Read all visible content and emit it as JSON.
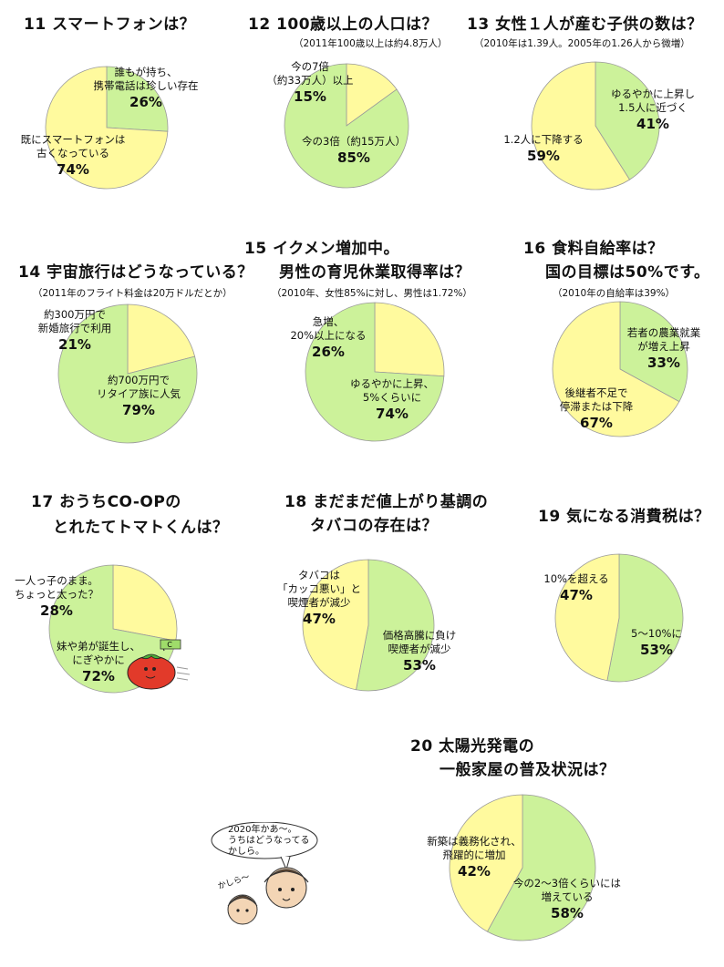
{
  "colors": {
    "green": "#CCF29A",
    "yellow": "#FFFA9E",
    "stroke": "#9a9a9a"
  },
  "chart_data": [
    {
      "type": "pie",
      "title": "11 スマートフォンは？",
      "subtitle": "",
      "slices": [
        {
          "label": "誰もが持ち、携帯電話は珍しい存在",
          "label_lines": [
            "誰もが持ち、",
            "携帯電話は珍しい存在"
          ],
          "value": 26,
          "value_label": "26%",
          "color": "#CCF29A"
        },
        {
          "label": "既にスマートフォンは古くなっている",
          "label_lines": [
            "既にスマートフォンは",
            "古くなっている"
          ],
          "value": 74,
          "value_label": "74%",
          "color": "#FFFA9E"
        }
      ]
    },
    {
      "type": "pie",
      "title": "12 100歳以上の人口は？",
      "subtitle": "（2011年100歳以上は約4.8万人）",
      "slices": [
        {
          "label": "今の7倍（約33万人）以上",
          "label_lines": [
            "今の7倍",
            "（約33万人）以上"
          ],
          "value": 15,
          "value_label": "15%",
          "color": "#FFFA9E"
        },
        {
          "label": "今の3倍（約15万人）",
          "label_lines": [
            "今の3倍（約15万人）"
          ],
          "value": 85,
          "value_label": "85%",
          "color": "#CCF29A"
        }
      ]
    },
    {
      "type": "pie",
      "title": "13 女性１人が産む子供の数は？",
      "subtitle": "（2010年は1.39人。2005年の1.26人から微増）",
      "slices": [
        {
          "label": "ゆるやかに上昇し1.5人に近づく",
          "label_lines": [
            "ゆるやかに上昇し",
            "1.5人に近づく"
          ],
          "value": 41,
          "value_label": "41%",
          "color": "#CCF29A"
        },
        {
          "label": "1.2人に下降する",
          "label_lines": [
            "1.2人に下降する"
          ],
          "value": 59,
          "value_label": "59%",
          "color": "#FFFA9E"
        }
      ]
    },
    {
      "type": "pie",
      "title": "14 宇宙旅行はどうなっている？",
      "subtitle": "（2011年のフライト料金は20万ドルだとか）",
      "slices": [
        {
          "label": "約300万円で新婚旅行で利用",
          "label_lines": [
            "約300万円で",
            "新婚旅行で利用"
          ],
          "value": 21,
          "value_label": "21%",
          "color": "#FFFA9E"
        },
        {
          "label": "約700万円でリタイア族に人気",
          "label_lines": [
            "約700万円で",
            "リタイア族に人気"
          ],
          "value": 79,
          "value_label": "79%",
          "color": "#CCF29A"
        }
      ]
    },
    {
      "type": "pie",
      "title_lines": [
        "15 イクメン増加中。",
        "男性の育児休業取得率は？"
      ],
      "title": "15 イクメン増加中。男性の育児休業取得率は？",
      "subtitle": "（2010年、女性85%に対し、男性は1.72%）",
      "slices": [
        {
          "label": "急増、20%以上になる",
          "label_lines": [
            "急増、",
            "20%以上になる"
          ],
          "value": 26,
          "value_label": "26%",
          "color": "#FFFA9E"
        },
        {
          "label": "ゆるやかに上昇、5%くらいに",
          "label_lines": [
            "ゆるやかに上昇、",
            "5%くらいに"
          ],
          "value": 74,
          "value_label": "74%",
          "color": "#CCF29A"
        }
      ]
    },
    {
      "type": "pie",
      "title_lines": [
        "16 食料自給率は？",
        "国の目標は50%です。"
      ],
      "title": "16 食料自給率は？国の目標は50%です。",
      "subtitle": "（2010年の自給率は39%）",
      "slices": [
        {
          "label": "若者の農業就業が増え上昇",
          "label_lines": [
            "若者の農業就業",
            "が増え上昇"
          ],
          "value": 33,
          "value_label": "33%",
          "color": "#CCF29A"
        },
        {
          "label": "後継者不足で停滞または下降",
          "label_lines": [
            "後継者不足で",
            "停滞または下降"
          ],
          "value": 67,
          "value_label": "67%",
          "color": "#FFFA9E"
        }
      ]
    },
    {
      "type": "pie",
      "title_lines": [
        "17 おうちCO-OPの",
        "とれたてトマトくんは？"
      ],
      "title": "17 おうちCO-OPのとれたてトマトくんは？",
      "subtitle": "",
      "slices": [
        {
          "label": "一人っ子のまま。ちょっと太った？",
          "label_lines": [
            "一人っ子のまま。",
            "ちょっと太った？"
          ],
          "value": 28,
          "value_label": "28%",
          "color": "#FFFA9E"
        },
        {
          "label": "妹や弟が誕生し、にぎやかに",
          "label_lines": [
            "妹や弟が誕生し、",
            "にぎやかに"
          ],
          "value": 72,
          "value_label": "72%",
          "color": "#CCF29A"
        }
      ]
    },
    {
      "type": "pie",
      "title_lines": [
        "18 まだまだ値上がり基調の",
        "タバコの存在は？"
      ],
      "title": "18 まだまだ値上がり基調のタバコの存在は？",
      "subtitle": "",
      "slices": [
        {
          "label": "価格高騰に負け喫煙者が減少",
          "label_lines": [
            "価格高騰に負け",
            "喫煙者が減少"
          ],
          "value": 53,
          "value_label": "53%",
          "color": "#CCF29A"
        },
        {
          "label": "タバコは「カッコ悪い」と喫煙者が減少",
          "label_lines": [
            "タバコは",
            "「カッコ悪い」と",
            "喫煙者が減少"
          ],
          "value": 47,
          "value_label": "47%",
          "color": "#FFFA9E"
        }
      ]
    },
    {
      "type": "pie",
      "title": "19 気になる消費税は？",
      "subtitle": "",
      "slices": [
        {
          "label": "5～10%に",
          "label_lines": [
            "5～10%に"
          ],
          "value": 53,
          "value_label": "53%",
          "color": "#CCF29A"
        },
        {
          "label": "10%を超える",
          "label_lines": [
            "10%を超える"
          ],
          "value": 47,
          "value_label": "47%",
          "color": "#FFFA9E"
        }
      ]
    },
    {
      "type": "pie",
      "title_lines": [
        "20 太陽光発電の",
        "一般家屋の普及状況は？"
      ],
      "title": "20 太陽光発電の一般家屋の普及状況は？",
      "subtitle": "",
      "slices": [
        {
          "label": "今の2～3倍くらいには増えている",
          "label_lines": [
            "今の2～3倍くらいには",
            "増えている"
          ],
          "value": 58,
          "value_label": "58%",
          "color": "#CCF29A"
        },
        {
          "label": "新築は義務化され、飛躍的に増加",
          "label_lines": [
            "新築は義務化され、",
            "飛躍的に増加"
          ],
          "value": 42,
          "value_label": "42%",
          "color": "#FFFA9E"
        }
      ]
    }
  ],
  "illustrations": {
    "speech_bubble_lines": [
      "2020年かあ～。",
      "うちはどうなってる",
      "かしら。"
    ],
    "child_speech": "かしら～",
    "flag_text": "C"
  }
}
